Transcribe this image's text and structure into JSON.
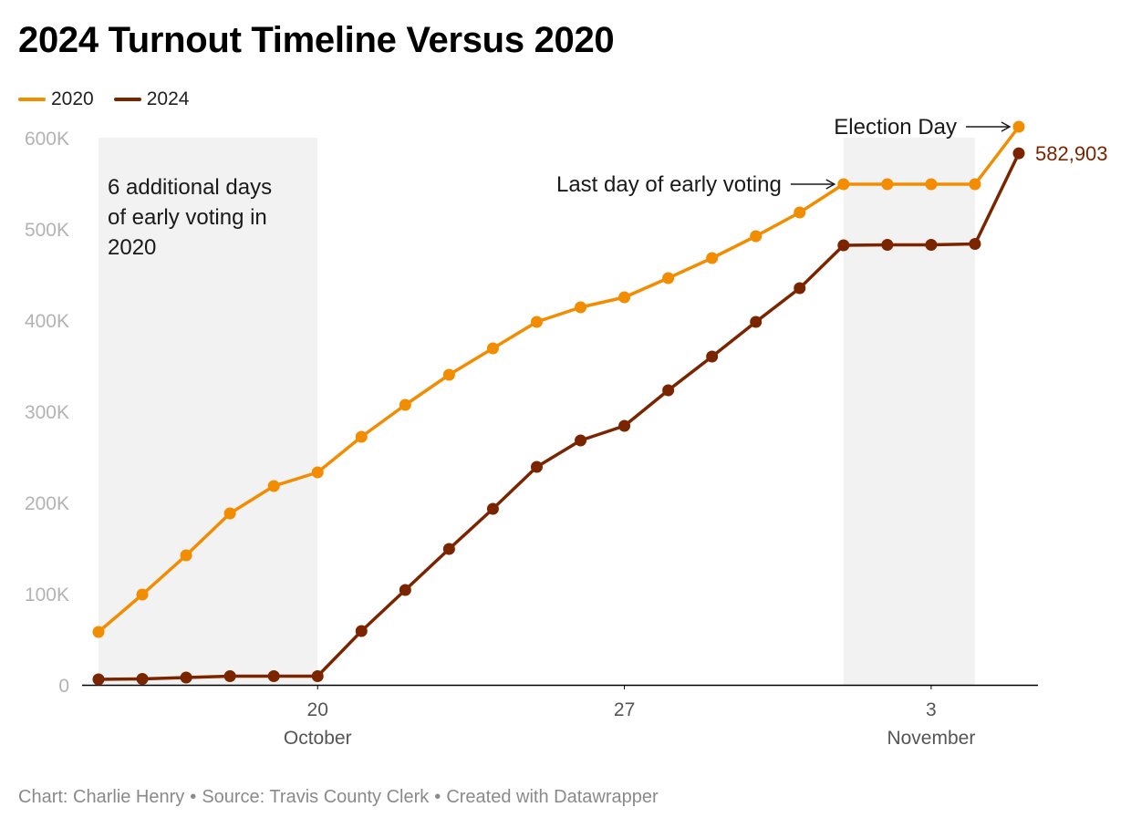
{
  "title": "2024 Turnout Timeline Versus 2020",
  "footer": {
    "credit": "Chart: Charlie Henry",
    "source": "Source: Travis County Clerk",
    "tool": "Created with Datawrapper",
    "separator": "•"
  },
  "colors": {
    "series_2020": "#f28c00",
    "series_2024": "#7a2400",
    "shade": "#f2f2f2",
    "axis": "#000000"
  },
  "chart_data": {
    "type": "line",
    "title": "2024 Turnout Timeline Versus 2020",
    "xlabel": "",
    "ylabel": "",
    "x": [
      "2024-10-15",
      "2024-10-16",
      "2024-10-17",
      "2024-10-18",
      "2024-10-19",
      "2024-10-20",
      "2024-10-21",
      "2024-10-22",
      "2024-10-23",
      "2024-10-24",
      "2024-10-25",
      "2024-10-26",
      "2024-10-27",
      "2024-10-28",
      "2024-10-29",
      "2024-10-30",
      "2024-10-31",
      "2024-11-01",
      "2024-11-02",
      "2024-11-03",
      "2024-11-04",
      "2024-11-05"
    ],
    "xlim": [
      "2024-10-15",
      "2024-11-05"
    ],
    "ylim": [
      0,
      600000
    ],
    "y_ticks": [
      {
        "value": 0,
        "label": "0"
      },
      {
        "value": 100000,
        "label": "100K"
      },
      {
        "value": 200000,
        "label": "200K"
      },
      {
        "value": 300000,
        "label": "300K"
      },
      {
        "value": 400000,
        "label": "400K"
      },
      {
        "value": 500000,
        "label": "500K"
      },
      {
        "value": 600000,
        "label": "600K"
      }
    ],
    "x_ticks": [
      {
        "value": "2024-10-20",
        "label": "20",
        "sublabel": "October"
      },
      {
        "value": "2024-10-27",
        "label": "27",
        "sublabel": ""
      },
      {
        "value": "2024-11-03",
        "label": "3",
        "sublabel": "November"
      }
    ],
    "legend": "top-left",
    "grid": false,
    "series": [
      {
        "name": "2020",
        "values": [
          58000,
          99000,
          142000,
          188000,
          218000,
          233000,
          272000,
          307000,
          340000,
          369000,
          398000,
          414000,
          425000,
          446000,
          468000,
          492000,
          518000,
          549000,
          549000,
          549000,
          549000,
          612000
        ]
      },
      {
        "name": "2024",
        "values": [
          6000,
          6500,
          8000,
          9500,
          9500,
          9500,
          59000,
          104000,
          149000,
          193000,
          239000,
          268000,
          284000,
          323000,
          360000,
          398000,
          435000,
          482000,
          482500,
          482500,
          483500,
          582903
        ]
      }
    ],
    "shaded_ranges": [
      {
        "from": "2024-10-15",
        "to": "2024-10-20"
      },
      {
        "from": "2024-11-01",
        "to": "2024-11-04"
      }
    ],
    "annotations": [
      {
        "text": [
          "6 additional days",
          "of early voting in",
          "2020"
        ]
      },
      {
        "text": "Last day of early voting",
        "x": "2024-11-01",
        "y": 549000
      },
      {
        "text": "Election Day",
        "x": "2024-11-05",
        "y": 612000
      }
    ],
    "value_labels": [
      {
        "text": "582,903",
        "x": "2024-11-05",
        "y": 582903,
        "series": "2024"
      }
    ]
  }
}
